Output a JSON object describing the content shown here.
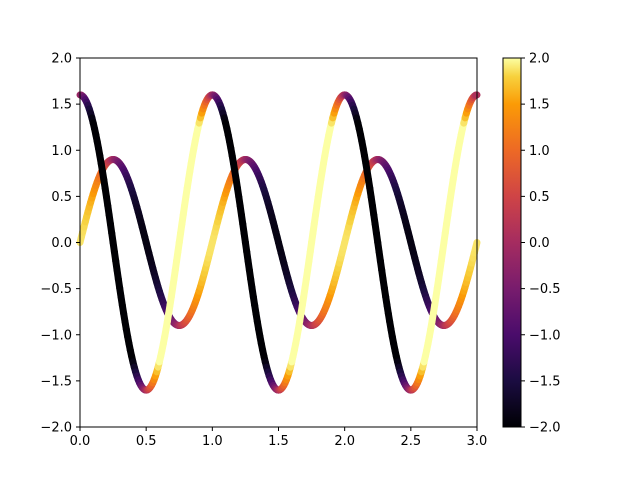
{
  "chart_data": {
    "type": "line",
    "title": "",
    "xlabel": "",
    "ylabel": "",
    "xlim": [
      0.0,
      3.0
    ],
    "ylim": [
      -2.0,
      2.0
    ],
    "x_ticks": [
      "0.0",
      "0.5",
      "1.0",
      "1.5",
      "2.0",
      "2.5",
      "3.0"
    ],
    "y_ticks": [
      "-2.0",
      "-1.5",
      "-1.0",
      "-0.5",
      "0.0",
      "0.5",
      "1.0",
      "1.5",
      "2.0"
    ],
    "grid": false,
    "line_style": "thick line drawn with dense star markers, colored per point by a colormap",
    "colormap": "inferno",
    "series": [
      {
        "function": "y = 0.9*sin(2*pi*x)",
        "color_value": "derivative dy/dx / 3",
        "x": [
          0,
          0.125,
          0.25,
          0.375,
          0.5,
          0.625,
          0.75,
          0.875,
          1.0,
          1.125,
          1.25,
          1.375,
          1.5,
          1.625,
          1.75,
          1.875,
          2.0,
          2.125,
          2.25,
          2.375,
          2.5,
          2.625,
          2.75,
          2.875,
          3.0
        ],
        "y": [
          0,
          0.64,
          0.9,
          0.64,
          0,
          -0.64,
          -0.9,
          -0.64,
          0,
          0.64,
          0.9,
          0.64,
          0,
          -0.64,
          -0.9,
          -0.64,
          0,
          0.64,
          0.9,
          0.64,
          0,
          -0.64,
          -0.9,
          -0.64,
          0
        ]
      },
      {
        "function": "y = 1.6*cos(2*pi*x)",
        "color_value": "derivative dy/dx / 3",
        "x": [
          0,
          0.125,
          0.25,
          0.375,
          0.5,
          0.625,
          0.75,
          0.875,
          1.0,
          1.125,
          1.25,
          1.375,
          1.5,
          1.625,
          1.75,
          1.875,
          2.0,
          2.125,
          2.25,
          2.375,
          2.5,
          2.625,
          2.75,
          2.875,
          3.0
        ],
        "y": [
          1.6,
          1.13,
          0,
          -1.13,
          -1.6,
          -1.13,
          0,
          1.13,
          1.6,
          1.13,
          0,
          -1.13,
          -1.6,
          -1.13,
          0,
          1.13,
          1.6,
          1.13,
          0,
          -1.13,
          -1.6,
          -1.13,
          0,
          1.13,
          1.6
        ]
      }
    ],
    "colorbar": {
      "range": [
        -2.0,
        2.0
      ],
      "ticks": [
        "-2.0",
        "-1.5",
        "-1.0",
        "-0.5",
        "0.0",
        "0.5",
        "1.0",
        "1.5",
        "2.0"
      ],
      "position": "right"
    },
    "colors": {
      "axis": "#000000",
      "background": "#ffffff"
    }
  }
}
